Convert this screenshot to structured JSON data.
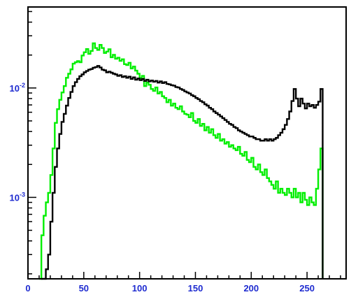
{
  "chart_data": {
    "type": "line",
    "step": true,
    "title": "",
    "xlabel": "",
    "ylabel": "",
    "xlim": [
      0,
      285
    ],
    "ylim": [
      0.00018,
      0.055
    ],
    "yscale": "log",
    "grid": false,
    "legend": false,
    "x_ticks": [
      {
        "value": 0,
        "label": "0"
      },
      {
        "value": 50,
        "label": "50"
      },
      {
        "value": 100,
        "label": "100"
      },
      {
        "value": 150,
        "label": "150"
      },
      {
        "value": 200,
        "label": "200"
      },
      {
        "value": 250,
        "label": "250"
      }
    ],
    "y_ticks": [
      {
        "value": 0.01,
        "base": "10",
        "exp": "-2"
      },
      {
        "value": 0.001,
        "base": "10",
        "exp": "-3"
      }
    ],
    "colors": {
      "tick_labels": "#1e2bd0",
      "axes": "#000000",
      "background": "#ffffff"
    },
    "series": [
      {
        "color": "#00ee00",
        "x": [
          10,
          12,
          14,
          16,
          18,
          20,
          22,
          24,
          26,
          28,
          30,
          32,
          34,
          36,
          38,
          40,
          42,
          44,
          46,
          48,
          50,
          52,
          54,
          56,
          58,
          60,
          62,
          64,
          66,
          68,
          70,
          72,
          74,
          76,
          78,
          80,
          82,
          84,
          86,
          88,
          90,
          92,
          94,
          96,
          98,
          100,
          102,
          104,
          106,
          108,
          110,
          112,
          114,
          116,
          118,
          120,
          122,
          124,
          126,
          128,
          130,
          132,
          134,
          136,
          138,
          140,
          142,
          144,
          146,
          148,
          150,
          152,
          154,
          156,
          158,
          160,
          162,
          164,
          166,
          168,
          170,
          172,
          174,
          176,
          178,
          180,
          182,
          184,
          186,
          188,
          190,
          192,
          194,
          196,
          198,
          200,
          202,
          204,
          206,
          208,
          210,
          212,
          214,
          216,
          218,
          220,
          222,
          224,
          226,
          228,
          230,
          232,
          234,
          236,
          238,
          240,
          242,
          244,
          246,
          248,
          250,
          252,
          254,
          256,
          258,
          260,
          262
        ],
        "y": [
          0.00018,
          0.00045,
          0.00068,
          0.0009,
          0.0011,
          0.0016,
          0.0028,
          0.0048,
          0.0064,
          0.0078,
          0.0091,
          0.0104,
          0.0124,
          0.0135,
          0.0148,
          0.0167,
          0.0172,
          0.0176,
          0.0172,
          0.0198,
          0.0212,
          0.0227,
          0.0205,
          0.0218,
          0.0256,
          0.0232,
          0.0223,
          0.0248,
          0.0232,
          0.0209,
          0.0215,
          0.0226,
          0.0191,
          0.0201,
          0.0185,
          0.0189,
          0.0177,
          0.0183,
          0.0165,
          0.0162,
          0.017,
          0.0151,
          0.0157,
          0.0144,
          0.0135,
          0.0123,
          0.0129,
          0.0104,
          0.0112,
          0.0107,
          0.0098,
          0.0094,
          0.0101,
          0.0089,
          0.0092,
          0.0084,
          0.0081,
          0.0074,
          0.0078,
          0.0069,
          0.0072,
          0.0066,
          0.0064,
          0.0068,
          0.0061,
          0.0058,
          0.0057,
          0.0054,
          0.0059,
          0.005,
          0.0048,
          0.0052,
          0.0045,
          0.0047,
          0.0041,
          0.0044,
          0.0039,
          0.0042,
          0.0037,
          0.0035,
          0.0038,
          0.0033,
          0.0034,
          0.0031,
          0.0032,
          0.0029,
          0.003,
          0.0028,
          0.0027,
          0.0029,
          0.0025,
          0.0024,
          0.0026,
          0.0022,
          0.0021,
          0.0023,
          0.0019,
          0.0018,
          0.002,
          0.0017,
          0.0016,
          0.0018,
          0.0015,
          0.0014,
          0.0013,
          0.0012,
          0.0014,
          0.0011,
          0.0012,
          0.0011,
          0.00105,
          0.0012,
          0.0011,
          0.001,
          0.0012,
          0.001,
          0.0011,
          0.0009,
          0.0011,
          0.00095,
          0.00085,
          0.001,
          0.0009,
          0.00085,
          0.0012,
          0.0018,
          0.0028
        ]
      },
      {
        "color": "#000000",
        "x": [
          12,
          14,
          16,
          18,
          20,
          22,
          24,
          26,
          28,
          30,
          32,
          34,
          36,
          38,
          40,
          42,
          44,
          46,
          48,
          50,
          52,
          54,
          56,
          58,
          60,
          62,
          64,
          66,
          68,
          70,
          72,
          74,
          76,
          78,
          80,
          82,
          84,
          86,
          88,
          90,
          92,
          94,
          96,
          98,
          100,
          102,
          104,
          106,
          108,
          110,
          112,
          114,
          116,
          118,
          120,
          122,
          124,
          126,
          128,
          130,
          132,
          134,
          136,
          138,
          140,
          142,
          144,
          146,
          148,
          150,
          152,
          154,
          156,
          158,
          160,
          162,
          164,
          166,
          168,
          170,
          172,
          174,
          176,
          178,
          180,
          182,
          184,
          186,
          188,
          190,
          192,
          194,
          196,
          198,
          200,
          202,
          204,
          206,
          208,
          210,
          212,
          214,
          216,
          218,
          220,
          222,
          224,
          226,
          228,
          230,
          232,
          234,
          236,
          238,
          240,
          242,
          244,
          246,
          248,
          250,
          252,
          254,
          256,
          258,
          260,
          262
        ],
        "y": [
          0.00018,
          0.00018,
          0.00022,
          0.0003,
          0.0006,
          0.0011,
          0.0019,
          0.0028,
          0.0038,
          0.0049,
          0.0058,
          0.0069,
          0.0081,
          0.0092,
          0.0104,
          0.0113,
          0.0121,
          0.0128,
          0.0133,
          0.0139,
          0.0143,
          0.0147,
          0.0149,
          0.0153,
          0.0155,
          0.0159,
          0.0154,
          0.0147,
          0.0145,
          0.0139,
          0.0141,
          0.0138,
          0.0135,
          0.0133,
          0.0129,
          0.0131,
          0.0126,
          0.0128,
          0.0124,
          0.0127,
          0.0121,
          0.0125,
          0.0119,
          0.0122,
          0.0118,
          0.0121,
          0.0116,
          0.0119,
          0.0115,
          0.0117,
          0.0114,
          0.0116,
          0.0112,
          0.0115,
          0.0111,
          0.0113,
          0.0109,
          0.0108,
          0.0106,
          0.0105,
          0.0102,
          0.0101,
          0.0098,
          0.0096,
          0.0093,
          0.0091,
          0.0089,
          0.0086,
          0.0084,
          0.0081,
          0.0079,
          0.0076,
          0.0074,
          0.0071,
          0.0069,
          0.0066,
          0.0064,
          0.0061,
          0.0059,
          0.0057,
          0.0055,
          0.0053,
          0.0051,
          0.0049,
          0.0047,
          0.0046,
          0.0044,
          0.0043,
          0.0041,
          0.004,
          0.0039,
          0.0038,
          0.0037,
          0.0036,
          0.0036,
          0.0035,
          0.0034,
          0.0034,
          0.0033,
          0.0033,
          0.0034,
          0.0033,
          0.0034,
          0.0033,
          0.0034,
          0.0035,
          0.0037,
          0.0039,
          0.0042,
          0.0046,
          0.0052,
          0.0061,
          0.0076,
          0.0098,
          0.008,
          0.0068,
          0.008,
          0.0072,
          0.0065,
          0.0072,
          0.0068,
          0.007,
          0.0066,
          0.007,
          0.0075,
          0.0098
        ]
      }
    ]
  }
}
